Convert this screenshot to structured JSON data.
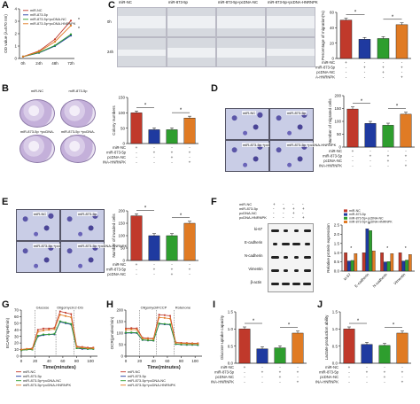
{
  "colors": {
    "nc": "#c0392b",
    "mir": "#1f3aa0",
    "mirpc": "#2e9e2e",
    "mirhn": "#e07b24",
    "star": "#111111"
  },
  "legend_labels": [
    "miR-NC",
    "miR-873-5p",
    "miR-873-5p+pcDNA-NC",
    "miR-873-5p+pcDNA-HNRNPK"
  ],
  "panels": {
    "A": {
      "letter": "A",
      "ylabel": "OD value (λ=570 nm)",
      "xticks": [
        "0h",
        "24h",
        "48h",
        "72h"
      ],
      "yticks": [
        "0",
        "1",
        "2",
        "3",
        "4"
      ]
    },
    "C": {
      "letter": "C",
      "cols": [
        "miR-NC",
        "miR-873-5p",
        "miR-873-5p+pcDNA-NC",
        "miR-873-5p+pcDNA-HNRNPK"
      ],
      "rows": [
        "0h",
        "24h"
      ],
      "ylabel": "Percentage of migration(%)",
      "yticks": [
        "0",
        "20",
        "40",
        "60"
      ]
    },
    "B": {
      "letter": "B",
      "dish_labels": [
        "miR-NC",
        "miR-873-5p",
        "miR-873-5p +pcDNA-NC",
        "miR-873-5p +pcDNA-HNRNPK"
      ],
      "ylabel": "Colony numbers",
      "yticks": [
        "0",
        "50",
        "100",
        "150"
      ]
    },
    "D": {
      "letter": "D",
      "labels": [
        "miR-NC",
        "miR-873-5p",
        "miR-873-5p +pcDNA-NC",
        "miR-873-5p +pcDNA-HNRNPK"
      ],
      "ylabel": "Number of migrated cells",
      "yticks": [
        "0",
        "50",
        "100",
        "150",
        "200"
      ]
    },
    "E": {
      "letter": "E",
      "labels": [
        "miR-NC",
        "miR-873-5p",
        "miR-873-5p +pcDNA-NC",
        "miR-873-5p +pcDNA-HNRNPK"
      ],
      "ylabel": "Number of invaded cells",
      "yticks": [
        "0",
        "50",
        "100",
        "150",
        "200"
      ]
    },
    "F": {
      "letter": "F",
      "wb_rows": [
        "miR-NC",
        "miR-873-5p",
        "pcDNA-NC",
        "pcDNA-HNRNPK"
      ],
      "proteins": [
        "ki-67",
        "E-cadherin",
        "N-cadherin",
        "Vimentin",
        "β-actin"
      ],
      "ylabel": "Relative protein expression",
      "yticks": [
        "0.0",
        "0.5",
        "1.0",
        "1.5",
        "2.0",
        "2.5"
      ],
      "xticks": [
        "ki-67",
        "E-cadherin",
        "N-cadherin",
        "Vimentin"
      ]
    },
    "G": {
      "letter": "G",
      "ylabel": "ECAR(mpH/min)",
      "xlabel": "Time(minutes)",
      "annotations": [
        "Glucose",
        "Oligomycin",
        "2-DG"
      ],
      "xticks": [
        "0",
        "20",
        "40",
        "60",
        "80",
        "100"
      ],
      "yticks": [
        "0",
        "10",
        "20",
        "30",
        "40",
        "50",
        "60",
        "70"
      ]
    },
    "H": {
      "letter": "H",
      "ylabel": "OCR(pmoles/min)",
      "xlabel": "Time(minutes)",
      "annotations": [
        "Oligomycin",
        "FCCP",
        "Rotenone"
      ],
      "xticks": [
        "0",
        "20",
        "40",
        "60",
        "80",
        "100"
      ],
      "yticks": [
        "0",
        "50",
        "100",
        "150",
        "200"
      ]
    },
    "I": {
      "letter": "I",
      "ylabel": "Glucose uptake capacity",
      "yticks": [
        "0.0",
        "0.5",
        "1.0",
        "1.5"
      ]
    },
    "J": {
      "letter": "J",
      "ylabel": "Lactate production ability",
      "yticks": [
        "0.0",
        "0.5",
        "1.0",
        "1.5"
      ]
    }
  },
  "matrix_rows": [
    "miR-NC",
    "miR-873-5p",
    "pcDNA-NC",
    "pcDNA-HNRNPK"
  ],
  "matrix_signs": [
    [
      "+",
      "-",
      "-",
      "-"
    ],
    [
      "-",
      "+",
      "+",
      "+"
    ],
    [
      "-",
      "-",
      "+",
      "-"
    ],
    [
      "-",
      "-",
      "-",
      "+"
    ]
  ],
  "matrix_rows_short": [
    "miR-NC",
    "miR-873-5p",
    "pcDNA-NC"
  ],
  "significance": "*",
  "chart_data": [
    {
      "panel": "A",
      "type": "line",
      "x": [
        "0h",
        "24h",
        "48h",
        "72h"
      ],
      "series": [
        {
          "name": "miR-NC",
          "values": [
            0.15,
            0.6,
            1.55,
            3.05
          ]
        },
        {
          "name": "miR-873-5p",
          "values": [
            0.15,
            0.45,
            1.0,
            1.85
          ]
        },
        {
          "name": "miR-873-5p+pcDNA-NC",
          "values": [
            0.15,
            0.48,
            1.05,
            1.95
          ]
        },
        {
          "name": "miR-873-5p+pcDNA-HNRNPK",
          "values": [
            0.15,
            0.55,
            1.35,
            2.65
          ]
        }
      ],
      "ylim": [
        0,
        4
      ]
    },
    {
      "panel": "C",
      "type": "bar",
      "values": [
        50,
        25,
        26,
        44
      ],
      "ylim": [
        0,
        60
      ]
    },
    {
      "panel": "B",
      "type": "bar",
      "values": [
        100,
        45,
        45,
        83
      ],
      "ylim": [
        0,
        150
      ]
    },
    {
      "panel": "D",
      "type": "bar",
      "values": [
        148,
        92,
        85,
        128
      ],
      "ylim": [
        0,
        200
      ]
    },
    {
      "panel": "E",
      "type": "bar",
      "values": [
        180,
        100,
        100,
        150
      ],
      "ylim": [
        0,
        200
      ]
    },
    {
      "panel": "F",
      "type": "bar",
      "categories": [
        "ki-67",
        "E-cadherin",
        "N-cadherin",
        "Vimentin"
      ],
      "series": [
        {
          "name": "miR-NC",
          "values": [
            1.0,
            1.0,
            1.0,
            1.0
          ]
        },
        {
          "name": "miR-873-5p",
          "values": [
            0.55,
            2.3,
            0.5,
            0.55
          ]
        },
        {
          "name": "miR-873-5p+pcDNA-NC",
          "values": [
            0.58,
            2.2,
            0.52,
            0.6
          ]
        },
        {
          "name": "miR-873-5p+pcDNA-HNRNPK",
          "values": [
            0.95,
            1.1,
            0.95,
            0.9
          ]
        }
      ],
      "ylim": [
        0,
        2.5
      ]
    },
    {
      "panel": "G",
      "type": "line",
      "x": [
        0,
        8,
        16,
        24,
        32,
        40,
        48,
        56,
        64,
        72,
        80,
        88,
        96,
        104
      ],
      "series": [
        {
          "name": "miR-NC",
          "values": [
            10,
            11,
            12,
            40,
            42,
            42,
            43,
            68,
            66,
            64,
            15,
            14,
            13,
            13
          ]
        },
        {
          "name": "miR-873-5p",
          "values": [
            9,
            10,
            10,
            30,
            32,
            33,
            33,
            52,
            50,
            48,
            12,
            11,
            11,
            11
          ]
        },
        {
          "name": "miR-873-5p+pcDNA-NC",
          "values": [
            9,
            10,
            10,
            31,
            33,
            33,
            34,
            53,
            51,
            49,
            12,
            12,
            11,
            11
          ]
        },
        {
          "name": "miR-873-5p+pcDNA-HNRNPK",
          "values": [
            10,
            11,
            11,
            37,
            39,
            40,
            41,
            63,
            61,
            59,
            14,
            13,
            12,
            12
          ]
        }
      ],
      "xlim": [
        0,
        110
      ],
      "ylim": [
        0,
        70
      ]
    },
    {
      "panel": "H",
      "type": "line",
      "x": [
        0,
        8,
        16,
        24,
        32,
        40,
        48,
        56,
        64,
        72,
        80,
        88,
        96,
        104
      ],
      "series": [
        {
          "name": "miR-NC",
          "values": [
            120,
            122,
            121,
            80,
            78,
            77,
            180,
            178,
            175,
            60,
            58,
            57,
            56,
            56
          ]
        },
        {
          "name": "miR-873-5p",
          "values": [
            100,
            101,
            100,
            70,
            68,
            67,
            140,
            138,
            136,
            52,
            50,
            49,
            49,
            48
          ]
        },
        {
          "name": "miR-873-5p+pcDNA-NC",
          "values": [
            102,
            103,
            102,
            71,
            69,
            68,
            142,
            140,
            138,
            53,
            51,
            50,
            50,
            49
          ]
        },
        {
          "name": "miR-873-5p+pcDNA-HNRNPK",
          "values": [
            115,
            116,
            115,
            77,
            75,
            74,
            168,
            166,
            163,
            58,
            56,
            55,
            54,
            54
          ]
        }
      ],
      "xlim": [
        0,
        110
      ],
      "ylim": [
        0,
        200
      ]
    },
    {
      "panel": "I",
      "type": "bar",
      "values": [
        1.0,
        0.42,
        0.45,
        0.88
      ],
      "ylim": [
        0,
        1.5
      ]
    },
    {
      "panel": "J",
      "type": "bar",
      "values": [
        1.0,
        0.55,
        0.52,
        0.88
      ],
      "ylim": [
        0,
        1.5
      ]
    }
  ]
}
